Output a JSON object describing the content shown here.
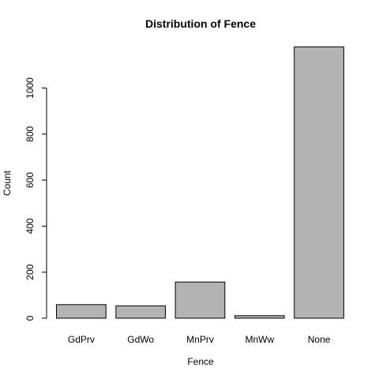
{
  "chart_data": {
    "type": "bar",
    "title": "Distribution of Fence",
    "xlabel": "Fence",
    "ylabel": "Count",
    "categories": [
      "GdPrv",
      "GdWo",
      "MnPrv",
      "MnWw",
      "None"
    ],
    "values": [
      59,
      54,
      157,
      11,
      1179
    ],
    "ylim": [
      0,
      1180
    ],
    "yticks": [
      0,
      200,
      400,
      600,
      800,
      1000
    ],
    "bar_color": "#b3b3b3",
    "grid": false
  }
}
